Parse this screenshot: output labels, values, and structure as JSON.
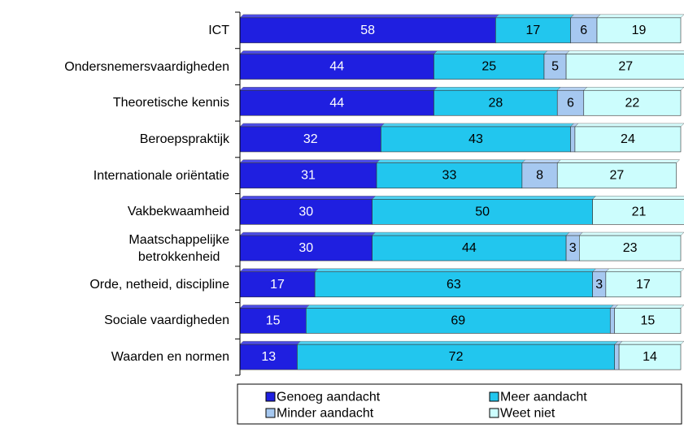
{
  "chart_data": {
    "type": "stacked-bar-horizontal",
    "categories": [
      "ICT",
      "Ondersnemersvaardigheden",
      "Theoretische kennis",
      "Beroepspraktijk",
      "Internationale oriëntatie",
      "Vakbekwaamheid",
      "Maatschappelijke\nbetrokkenheid",
      "Orde, netheid, discipline",
      "Sociale vaardigheden",
      "Waarden en normen"
    ],
    "series": [
      {
        "name": "Genoeg aandacht",
        "color": "#1f1fe0",
        "text_color": "#ffffff",
        "values": [
          58,
          44,
          44,
          32,
          31,
          30,
          30,
          17,
          15,
          13
        ]
      },
      {
        "name": "Meer aandacht",
        "color": "#22c6ee",
        "text_color": "#000000",
        "values": [
          17,
          25,
          28,
          43,
          33,
          50,
          44,
          63,
          69,
          72
        ]
      },
      {
        "name": "Minder aandacht",
        "color": "#a6c8f0",
        "text_color": "#000000",
        "values": [
          6,
          5,
          6,
          1,
          8,
          0,
          3,
          3,
          1,
          1
        ],
        "value_labels": [
          "6",
          "5",
          "6",
          null,
          "8",
          null,
          "3",
          "3",
          null,
          null
        ]
      },
      {
        "name": "Weet niet",
        "color": "#ccfdfd",
        "text_color": "#000000",
        "values": [
          19,
          27,
          22,
          24,
          27,
          21,
          23,
          17,
          15,
          14
        ]
      }
    ],
    "xlim": [
      0,
      100
    ]
  }
}
